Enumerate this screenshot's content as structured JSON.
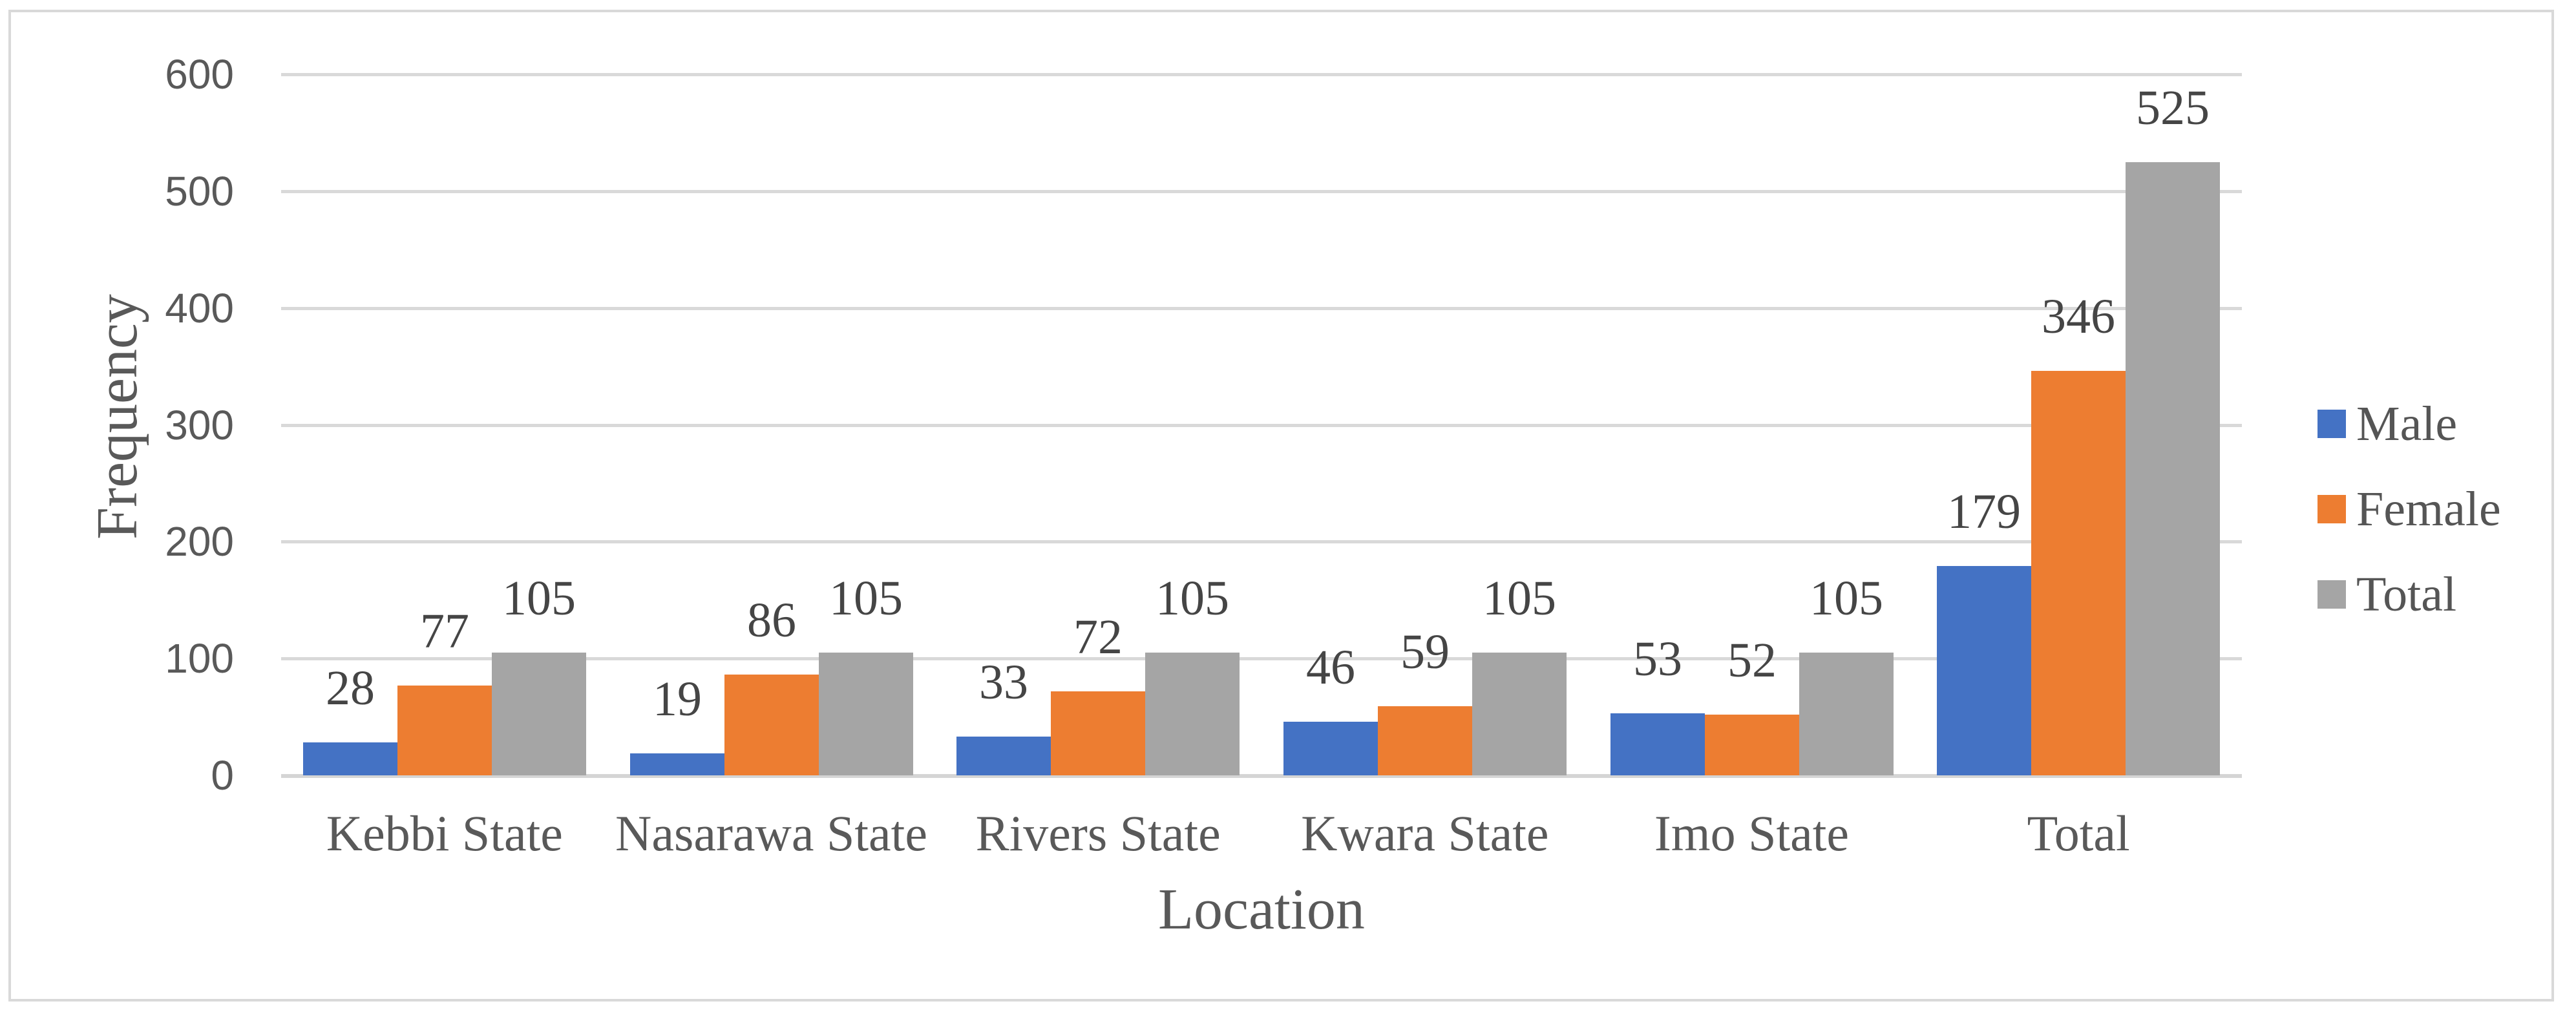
{
  "chart_data": {
    "type": "bar",
    "title": "",
    "categories": [
      "Kebbi State",
      "Nasarawa State",
      "Rivers State",
      "Kwara State",
      "Imo State",
      "Total"
    ],
    "series": [
      {
        "name": "Male",
        "color": "#4472C4",
        "values": [
          28,
          19,
          33,
          46,
          53,
          179
        ]
      },
      {
        "name": "Female",
        "color": "#ED7D31",
        "values": [
          77,
          86,
          72,
          59,
          52,
          346
        ]
      },
      {
        "name": "Total",
        "color": "#A5A5A5",
        "values": [
          105,
          105,
          105,
          105,
          105,
          525
        ]
      }
    ],
    "data_labels": true,
    "xlabel": "Location",
    "ylabel": "Frequency",
    "ylim": [
      0,
      600
    ],
    "ytick_step": 100,
    "yticks": [
      600,
      500,
      400,
      300,
      200,
      100,
      0
    ],
    "grid": true,
    "legend_position": "right"
  },
  "colors": {
    "gridline": "#D9D9D9",
    "axis_line": "#D5D5D5",
    "frame_border": "#D9D9D9",
    "tick_text": "#595959",
    "category_text": "#595959",
    "axis_title_text": "#595959",
    "data_label_text": "#454545",
    "legend_text": "#555555",
    "background": "#FFFFFF"
  }
}
